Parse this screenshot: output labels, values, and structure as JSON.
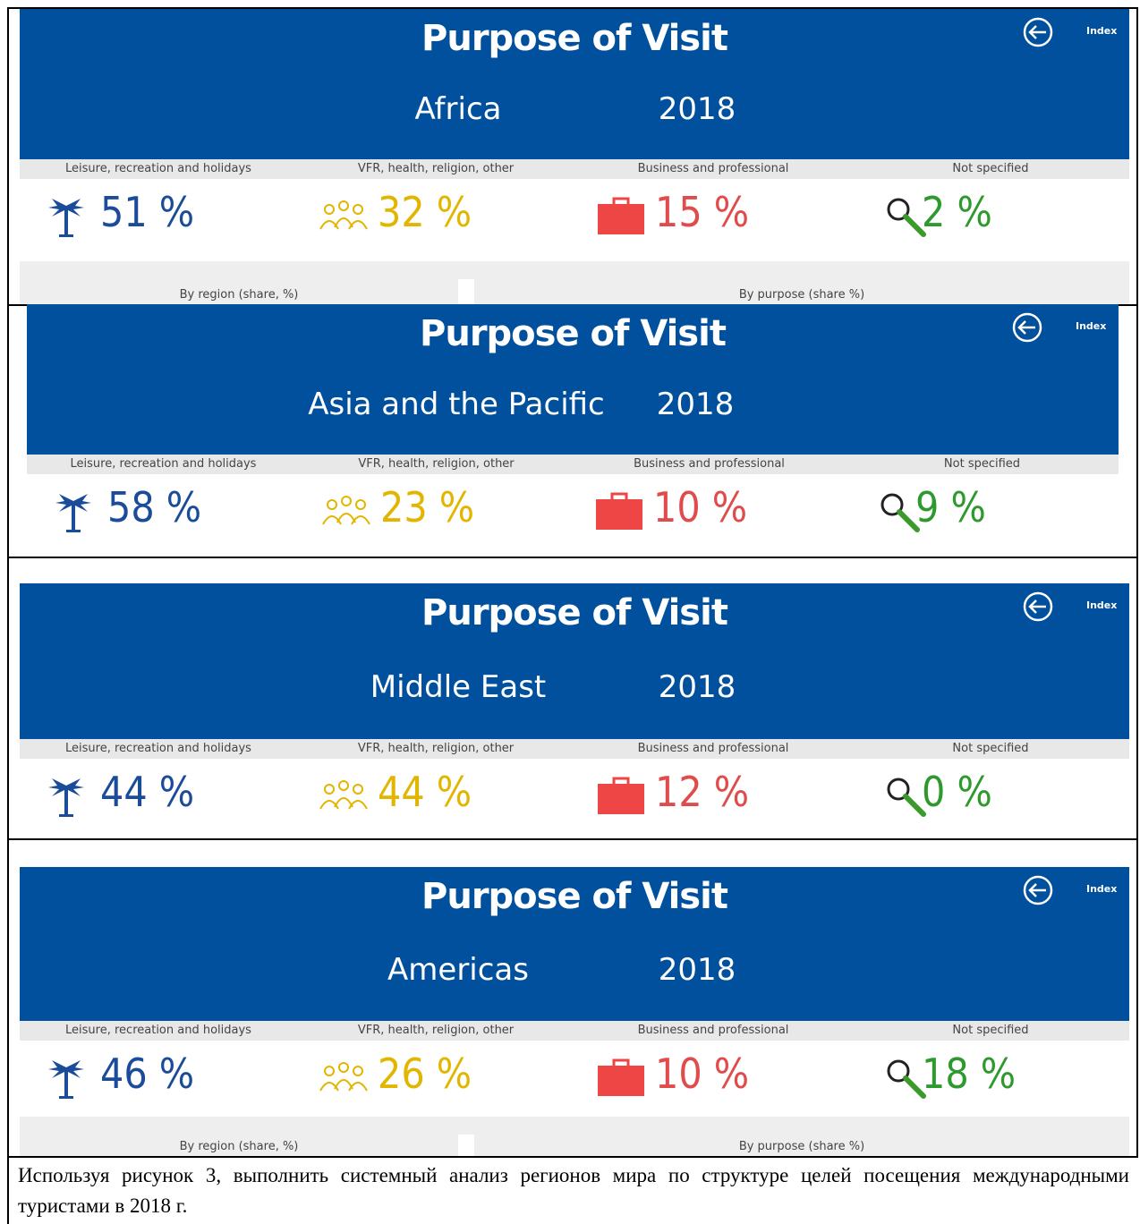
{
  "panels": [
    {
      "title": "Purpose of Visit",
      "index": "Index",
      "region": "Africa",
      "year": "2018",
      "kpis": [
        {
          "label": "Leisure, recreation and holidays",
          "value": "51 %"
        },
        {
          "label": "VFR, health, religion, other",
          "value": "32 %"
        },
        {
          "label": "Business and professional",
          "value": "15 %"
        },
        {
          "label": "Not specified",
          "value": "2 %"
        }
      ],
      "footer": [
        "By region (share, %)",
        "By purpose (share %)"
      ]
    },
    {
      "title": "Purpose of Visit",
      "index": "Index",
      "region": "Asia and the Pacific",
      "year": "2018",
      "kpis": [
        {
          "label": "Leisure, recreation and holidays",
          "value": "58 %"
        },
        {
          "label": "VFR, health, religion, other",
          "value": "23 %"
        },
        {
          "label": "Business and professional",
          "value": "10 %"
        },
        {
          "label": "Not specified",
          "value": "9 %"
        }
      ]
    },
    {
      "title": "Purpose of Visit",
      "index": "Index",
      "region": "Middle East",
      "year": "2018",
      "kpis": [
        {
          "label": "Leisure, recreation and holidays",
          "value": "44 %"
        },
        {
          "label": "VFR, health, religion, other",
          "value": "44 %"
        },
        {
          "label": "Business and professional",
          "value": "12 %"
        },
        {
          "label": "Not specified",
          "value": "0 %"
        }
      ]
    },
    {
      "title": "Purpose of Visit",
      "index": "Index",
      "region": "Americas",
      "year": "2018",
      "kpis": [
        {
          "label": "Leisure, recreation and holidays",
          "value": "46 %"
        },
        {
          "label": "VFR, health, religion, other",
          "value": "26 %"
        },
        {
          "label": "Business and professional",
          "value": "10 %"
        },
        {
          "label": "Not specified",
          "value": "18 %"
        }
      ],
      "footer": [
        "By region (share, %)",
        "By purpose (share %)"
      ]
    }
  ],
  "caption": "Используя рисунок 3, выполнить системный анализ регионов мира по структуре целей посещения международными туристами в 2018 г."
}
